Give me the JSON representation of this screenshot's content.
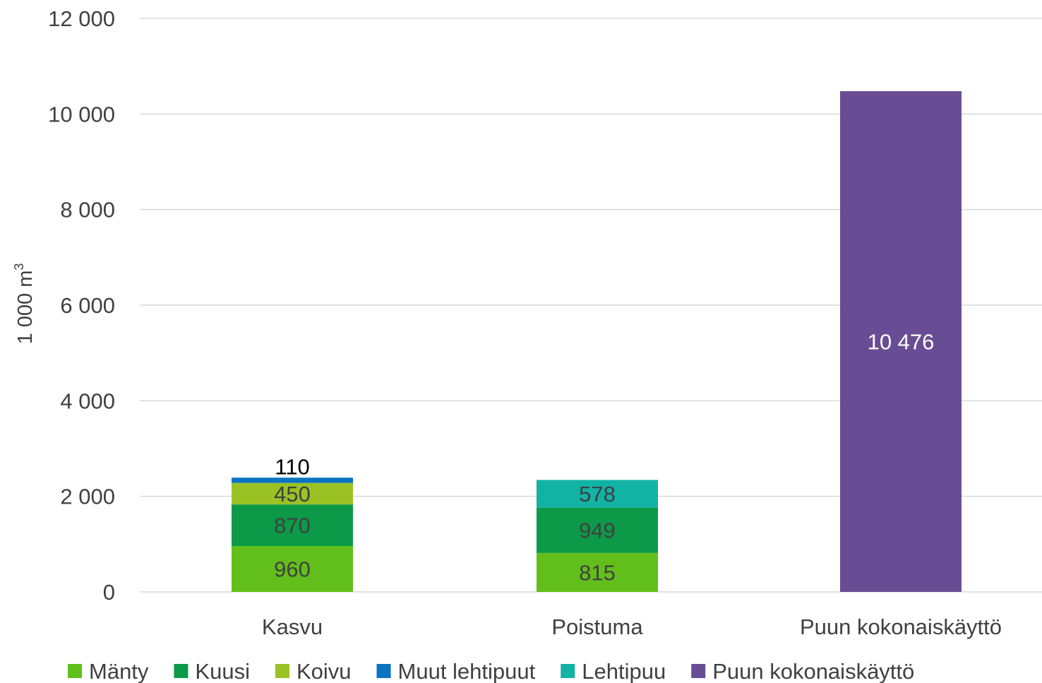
{
  "chart_data": {
    "type": "bar",
    "stacked": true,
    "categories": [
      "Kasvu",
      "Poistuma",
      "Puun kokonaiskäyttö"
    ],
    "ylabel": "1 000 m",
    "ylabel_superscript": "3",
    "ylim": [
      0,
      12000
    ],
    "yticks": [
      0,
      2000,
      4000,
      6000,
      8000,
      10000,
      12000
    ],
    "ytick_labels": [
      "0",
      "2 000",
      "4 000",
      "6 000",
      "8 000",
      "10 000",
      "12 000"
    ],
    "grid": true,
    "legend_position": "bottom",
    "series": [
      {
        "name": "Mänty",
        "color": "#62bf1b",
        "values": [
          960,
          815,
          null
        ],
        "labels": [
          "960",
          "815",
          null
        ],
        "label_color": "#404040"
      },
      {
        "name": "Kuusi",
        "color": "#0c9a49",
        "values": [
          870,
          949,
          null
        ],
        "labels": [
          "870",
          "949",
          null
        ],
        "label_color": "#404040"
      },
      {
        "name": "Koivu",
        "color": "#9ac224",
        "values": [
          450,
          null,
          null
        ],
        "labels": [
          "450",
          null,
          null
        ],
        "label_color": "#404040"
      },
      {
        "name": "Muut lehtipuut",
        "color": "#0b74c1",
        "values": [
          110,
          null,
          null
        ],
        "labels": [
          "110",
          null,
          null
        ],
        "label_color": "#000000",
        "label_above": true
      },
      {
        "name": "Lehtipuu",
        "color": "#11b3a5",
        "values": [
          null,
          578,
          null
        ],
        "labels": [
          null,
          "578",
          null
        ],
        "label_color": "#404040"
      },
      {
        "name": "Puun kokonaiskäyttö",
        "color": "#694d94",
        "values": [
          null,
          null,
          10476
        ],
        "labels": [
          null,
          null,
          "10 476"
        ],
        "label_color": "#ffffff"
      }
    ]
  }
}
